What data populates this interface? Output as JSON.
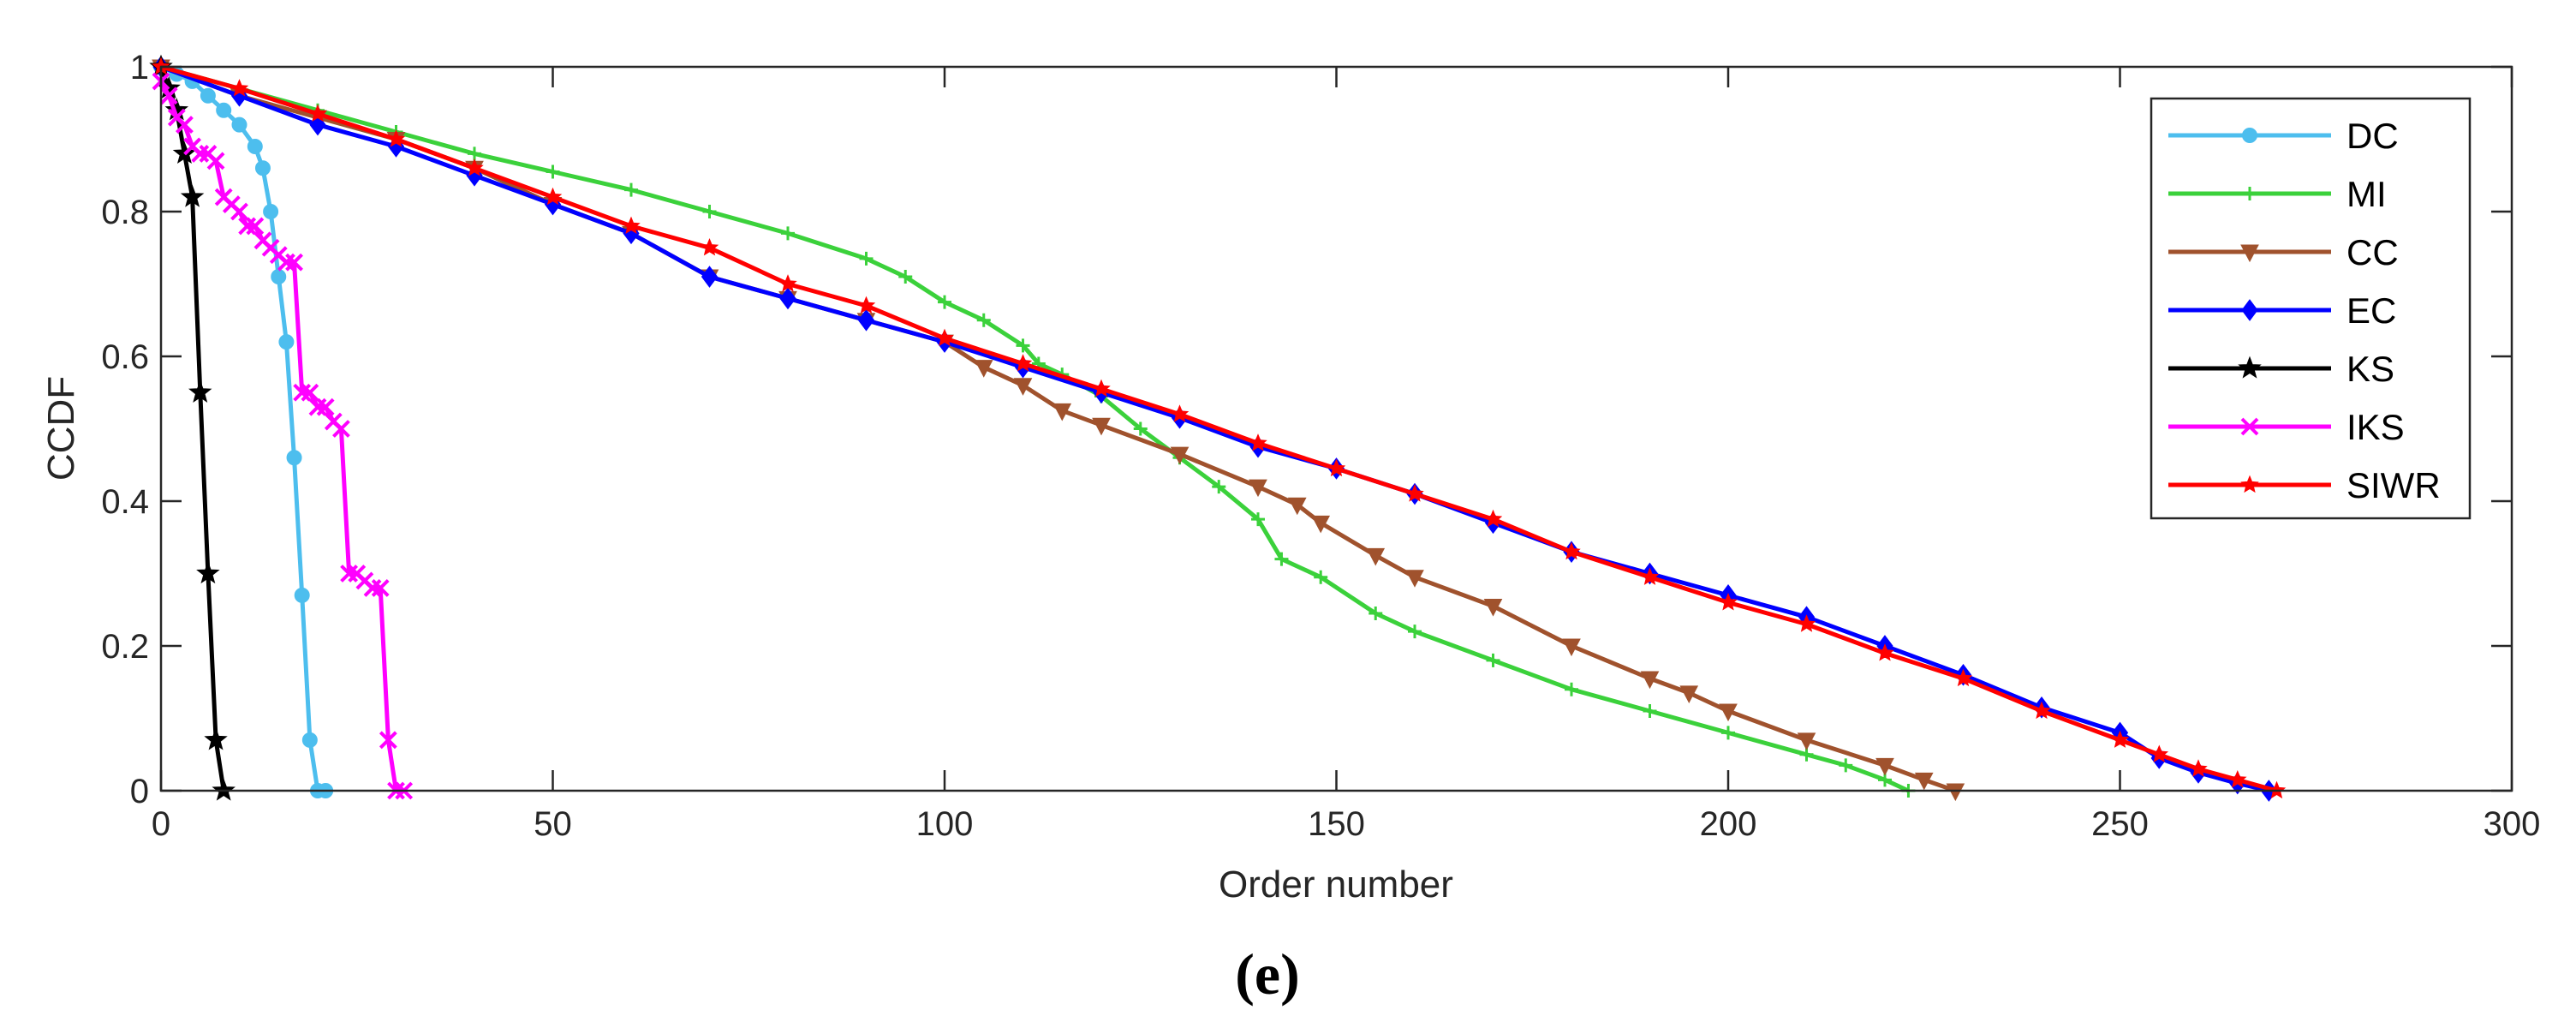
{
  "chart_data": {
    "type": "line",
    "xlabel": "Order number",
    "ylabel": "CCDF",
    "caption": "(e)",
    "xlim": [
      0,
      300
    ],
    "ylim": [
      0,
      1
    ],
    "xticks": [
      0,
      50,
      100,
      150,
      200,
      250,
      300
    ],
    "yticks": [
      0,
      0.2,
      0.4,
      0.6,
      0.8,
      1
    ],
    "xtick_labels": [
      "0",
      "50",
      "100",
      "150",
      "200",
      "250",
      "300"
    ],
    "ytick_labels": [
      "0",
      "0.2",
      "0.4",
      "0.6",
      "0.8",
      "1"
    ],
    "grid": false,
    "legend_position": "top-right",
    "series": [
      {
        "name": "DC",
        "color": "#4DBEEE",
        "marker": "circle",
        "x": [
          0,
          2,
          4,
          6,
          8,
          10,
          12,
          13,
          14,
          15,
          16,
          17,
          18,
          19,
          20,
          21
        ],
        "y": [
          1.0,
          0.99,
          0.98,
          0.96,
          0.94,
          0.92,
          0.89,
          0.86,
          0.8,
          0.71,
          0.62,
          0.46,
          0.27,
          0.07,
          0.0,
          0.0
        ]
      },
      {
        "name": "MI",
        "color": "#3BD13B",
        "marker": "plus",
        "x": [
          0,
          10,
          20,
          30,
          40,
          50,
          60,
          70,
          80,
          90,
          95,
          100,
          105,
          110,
          112,
          115,
          120,
          125,
          130,
          135,
          140,
          143,
          148,
          155,
          160,
          170,
          180,
          190,
          200,
          210,
          215,
          220,
          223
        ],
        "y": [
          1.0,
          0.97,
          0.94,
          0.91,
          0.88,
          0.855,
          0.83,
          0.8,
          0.77,
          0.735,
          0.71,
          0.675,
          0.65,
          0.615,
          0.59,
          0.575,
          0.545,
          0.5,
          0.46,
          0.42,
          0.375,
          0.32,
          0.295,
          0.245,
          0.22,
          0.18,
          0.14,
          0.11,
          0.08,
          0.05,
          0.035,
          0.015,
          0.0
        ]
      },
      {
        "name": "CC",
        "color": "#A0522D",
        "marker": "triangle-down",
        "x": [
          0,
          10,
          20,
          30,
          40,
          50,
          60,
          70,
          80,
          90,
          100,
          105,
          110,
          115,
          120,
          130,
          140,
          145,
          148,
          155,
          160,
          170,
          180,
          190,
          195,
          200,
          210,
          220,
          225,
          229
        ],
        "y": [
          1.0,
          0.96,
          0.93,
          0.9,
          0.86,
          0.81,
          0.77,
          0.71,
          0.68,
          0.65,
          0.62,
          0.585,
          0.56,
          0.525,
          0.505,
          0.465,
          0.42,
          0.395,
          0.37,
          0.325,
          0.295,
          0.255,
          0.2,
          0.155,
          0.135,
          0.11,
          0.07,
          0.035,
          0.015,
          0.0
        ]
      },
      {
        "name": "EC",
        "color": "#0000FF",
        "marker": "diamond",
        "x": [
          0,
          10,
          20,
          30,
          40,
          50,
          60,
          70,
          80,
          90,
          100,
          110,
          120,
          130,
          140,
          150,
          160,
          170,
          180,
          190,
          200,
          210,
          220,
          230,
          240,
          250,
          255,
          260,
          265,
          269
        ],
        "y": [
          1.0,
          0.96,
          0.92,
          0.89,
          0.85,
          0.81,
          0.77,
          0.71,
          0.68,
          0.65,
          0.62,
          0.585,
          0.55,
          0.515,
          0.475,
          0.445,
          0.41,
          0.37,
          0.33,
          0.3,
          0.27,
          0.24,
          0.2,
          0.16,
          0.115,
          0.08,
          0.045,
          0.025,
          0.01,
          0.0
        ]
      },
      {
        "name": "KS",
        "color": "#000000",
        "marker": "star",
        "x": [
          0,
          1,
          2,
          3,
          4,
          5,
          6,
          7,
          8
        ],
        "y": [
          1.0,
          0.97,
          0.94,
          0.88,
          0.82,
          0.55,
          0.3,
          0.07,
          0.0
        ]
      },
      {
        "name": "IKS",
        "color": "#FF00FF",
        "marker": "x",
        "x": [
          0,
          1,
          2,
          3,
          4,
          5,
          6,
          7,
          8,
          9,
          10,
          11,
          12,
          13,
          14,
          15,
          16,
          17,
          18,
          19,
          20,
          21,
          22,
          23,
          24,
          25,
          26,
          27,
          28,
          29,
          30,
          31
        ],
        "y": [
          0.98,
          0.96,
          0.93,
          0.92,
          0.89,
          0.88,
          0.88,
          0.87,
          0.82,
          0.81,
          0.8,
          0.78,
          0.78,
          0.76,
          0.75,
          0.74,
          0.73,
          0.73,
          0.55,
          0.55,
          0.53,
          0.53,
          0.51,
          0.5,
          0.3,
          0.3,
          0.29,
          0.28,
          0.28,
          0.07,
          0.0,
          0.0
        ]
      },
      {
        "name": "SIWR",
        "color": "#FF0000",
        "marker": "star-small",
        "x": [
          0,
          10,
          20,
          30,
          40,
          50,
          60,
          70,
          80,
          90,
          100,
          110,
          120,
          130,
          140,
          150,
          160,
          170,
          180,
          190,
          200,
          210,
          220,
          230,
          240,
          250,
          255,
          260,
          265,
          270
        ],
        "y": [
          1.0,
          0.97,
          0.935,
          0.9,
          0.86,
          0.82,
          0.78,
          0.75,
          0.7,
          0.67,
          0.625,
          0.59,
          0.555,
          0.52,
          0.48,
          0.445,
          0.41,
          0.375,
          0.33,
          0.295,
          0.26,
          0.23,
          0.19,
          0.155,
          0.11,
          0.07,
          0.05,
          0.03,
          0.015,
          0.0
        ]
      }
    ]
  }
}
